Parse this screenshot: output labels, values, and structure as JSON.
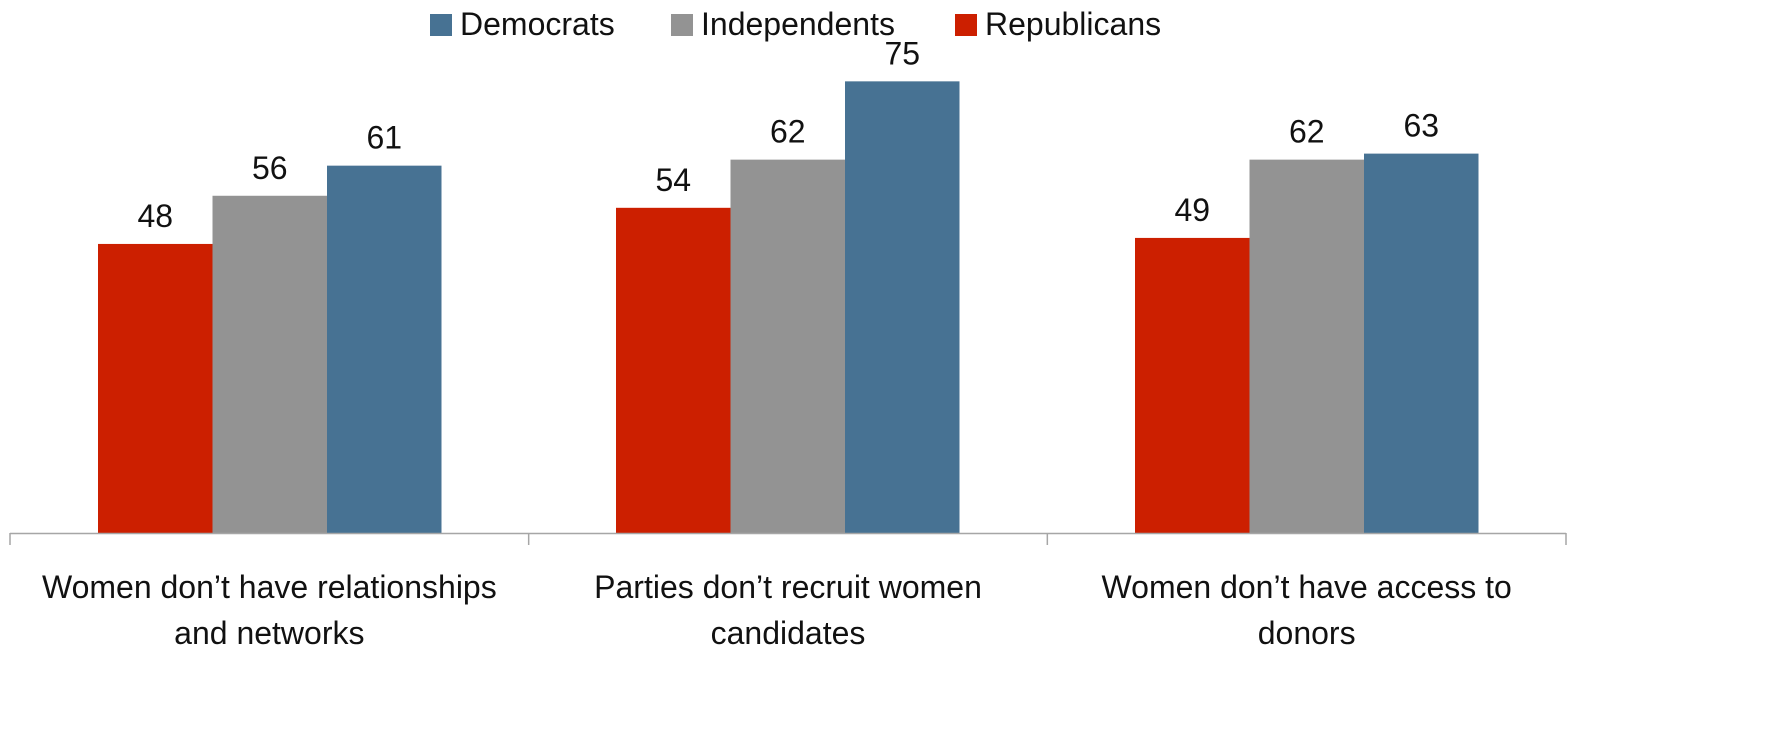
{
  "chart_data": {
    "type": "bar",
    "categories": [
      [
        "Women don’t have relationships",
        "and networks"
      ],
      [
        "Parties don’t recruit women",
        "candidates"
      ],
      [
        "Women don’t have access to",
        "donors"
      ]
    ],
    "series": [
      {
        "name": "Republicans",
        "values": [
          48,
          54,
          49
        ],
        "color": "#cc1f00"
      },
      {
        "name": "Independents",
        "values": [
          56,
          62,
          62
        ],
        "color": "#939393"
      },
      {
        "name": "Democrats",
        "values": [
          61,
          75,
          63
        ],
        "color": "#477293"
      }
    ],
    "legend_order": [
      "Democrats",
      "Independents",
      "Republicans"
    ],
    "legend_position": "top-center",
    "data_labels": true,
    "ylim": [
      0,
      87
    ],
    "grid": false,
    "title": "",
    "xlabel": "",
    "ylabel": ""
  }
}
